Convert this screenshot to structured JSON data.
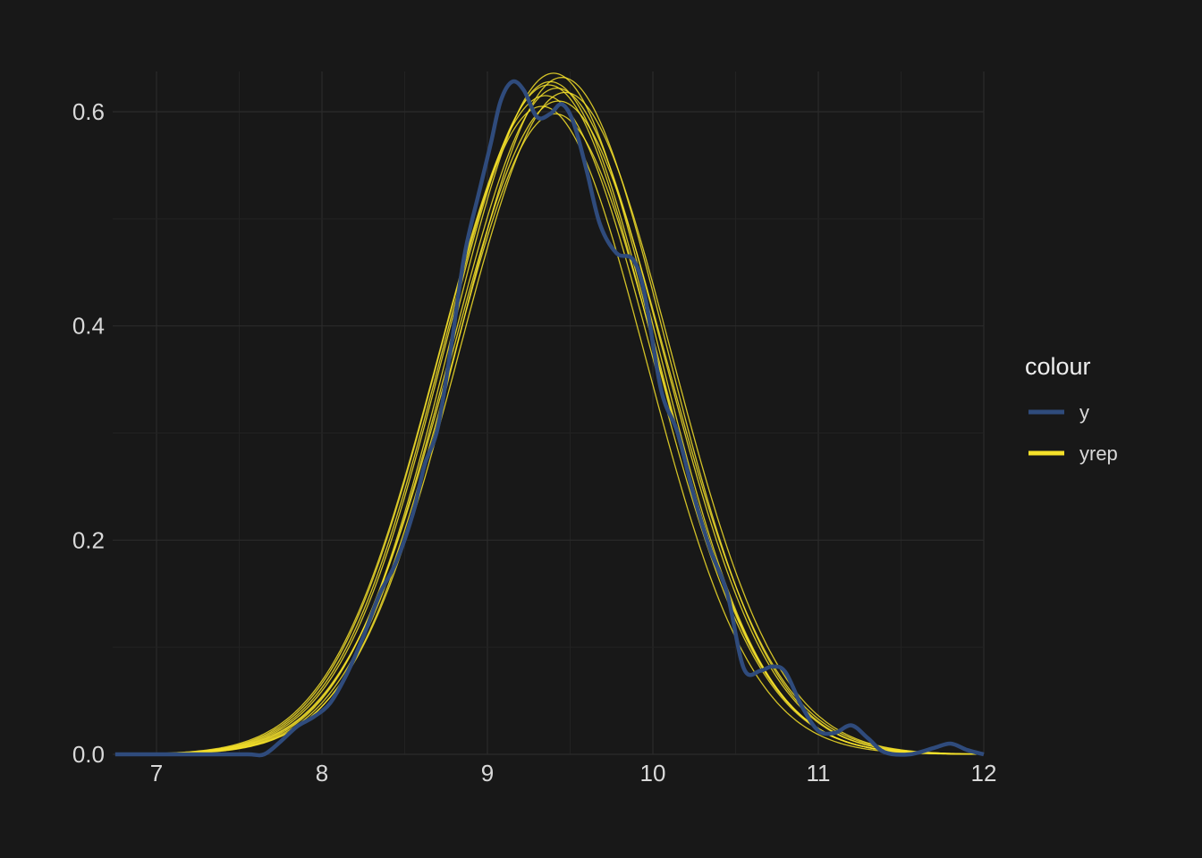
{
  "chart_data": {
    "type": "line",
    "title": "",
    "xlabel": "",
    "ylabel": "",
    "xlim": [
      6.75,
      12.0
    ],
    "ylim": [
      0.0,
      0.64
    ],
    "x_ticks": [
      7,
      8,
      9,
      10,
      11,
      12
    ],
    "x_tick_labels": [
      "7",
      "8",
      "9",
      "10",
      "11",
      "12"
    ],
    "y_ticks": [
      0.0,
      0.2,
      0.4,
      0.6
    ],
    "y_tick_labels": [
      "0.0",
      "0.2",
      "0.4",
      "0.6"
    ],
    "grid": true,
    "background": "#181818",
    "legend": {
      "title": "colour",
      "position": "right",
      "entries": [
        {
          "label": "y",
          "color": "#2f4b7c"
        },
        {
          "label": "yrep",
          "color": "#f5e12a"
        }
      ]
    },
    "series": [
      {
        "name": "y",
        "color": "#2f4b7c",
        "points": [
          [
            6.75,
            0.0
          ],
          [
            7.0,
            0.0
          ],
          [
            7.3,
            0.0
          ],
          [
            7.55,
            0.0
          ],
          [
            7.65,
            0.0
          ],
          [
            7.75,
            0.012
          ],
          [
            7.85,
            0.026
          ],
          [
            7.95,
            0.035
          ],
          [
            8.05,
            0.048
          ],
          [
            8.15,
            0.075
          ],
          [
            8.25,
            0.11
          ],
          [
            8.35,
            0.15
          ],
          [
            8.45,
            0.18
          ],
          [
            8.55,
            0.225
          ],
          [
            8.62,
            0.27
          ],
          [
            8.7,
            0.305
          ],
          [
            8.78,
            0.38
          ],
          [
            8.86,
            0.465
          ],
          [
            8.95,
            0.525
          ],
          [
            9.02,
            0.57
          ],
          [
            9.08,
            0.61
          ],
          [
            9.15,
            0.628
          ],
          [
            9.22,
            0.62
          ],
          [
            9.3,
            0.595
          ],
          [
            9.38,
            0.598
          ],
          [
            9.45,
            0.607
          ],
          [
            9.52,
            0.59
          ],
          [
            9.6,
            0.545
          ],
          [
            9.68,
            0.495
          ],
          [
            9.78,
            0.468
          ],
          [
            9.88,
            0.462
          ],
          [
            9.95,
            0.43
          ],
          [
            10.05,
            0.34
          ],
          [
            10.15,
            0.3
          ],
          [
            10.25,
            0.24
          ],
          [
            10.35,
            0.19
          ],
          [
            10.45,
            0.15
          ],
          [
            10.55,
            0.08
          ],
          [
            10.65,
            0.078
          ],
          [
            10.72,
            0.082
          ],
          [
            10.8,
            0.077
          ],
          [
            10.9,
            0.045
          ],
          [
            11.0,
            0.022
          ],
          [
            11.1,
            0.02
          ],
          [
            11.2,
            0.027
          ],
          [
            11.3,
            0.015
          ],
          [
            11.4,
            0.002
          ],
          [
            11.55,
            0.0
          ],
          [
            11.7,
            0.006
          ],
          [
            11.8,
            0.01
          ],
          [
            11.9,
            0.004
          ],
          [
            12.0,
            0.0
          ]
        ]
      },
      {
        "name": "yrep",
        "color": "#f5e12a",
        "draws": [
          {
            "mu": 9.38,
            "sd": 0.635,
            "amp": 0.628
          },
          {
            "mu": 9.42,
            "sd": 0.64,
            "amp": 0.622
          },
          {
            "mu": 9.45,
            "sd": 0.63,
            "amp": 0.632
          },
          {
            "mu": 9.35,
            "sd": 0.645,
            "amp": 0.615
          },
          {
            "mu": 9.4,
            "sd": 0.625,
            "amp": 0.636
          },
          {
            "mu": 9.43,
            "sd": 0.65,
            "amp": 0.61
          },
          {
            "mu": 9.37,
            "sd": 0.638,
            "amp": 0.625
          },
          {
            "mu": 9.47,
            "sd": 0.642,
            "amp": 0.618
          },
          {
            "mu": 9.33,
            "sd": 0.632,
            "amp": 0.605
          },
          {
            "mu": 9.41,
            "sd": 0.628,
            "amp": 0.598
          }
        ]
      }
    ]
  }
}
